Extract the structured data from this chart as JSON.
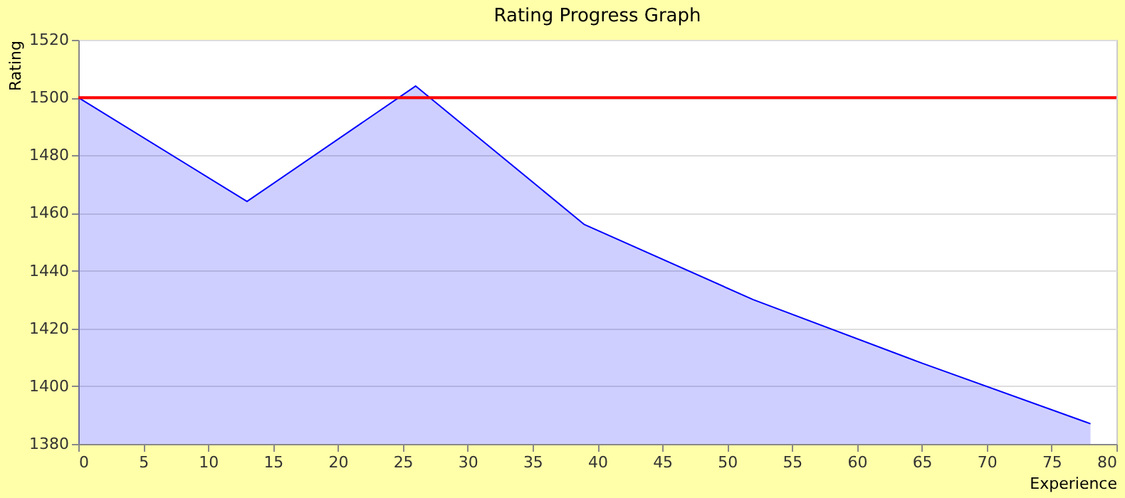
{
  "chart_data": {
    "type": "area",
    "title": "Rating Progress Graph",
    "xlabel": "Experience",
    "ylabel": "Rating",
    "x": [
      0,
      13,
      26,
      39,
      52,
      65,
      78
    ],
    "series": [
      {
        "color": "#0000ff",
        "values": [
          1500,
          1464,
          1504,
          1456,
          1430,
          1408,
          1387
        ]
      }
    ],
    "xlim": [
      0,
      80
    ],
    "xticks": [
      0,
      5,
      10,
      15,
      20,
      25,
      30,
      35,
      40,
      45,
      50,
      55,
      60,
      65,
      70,
      75,
      80
    ],
    "ylim": [
      1380,
      1520
    ],
    "yticks": [
      1380,
      1400,
      1420,
      1440,
      1460,
      1480,
      1500,
      1520
    ],
    "ref_lines": [
      {
        "axis": "y",
        "value": 1500,
        "color": "#ff0000"
      }
    ],
    "grid": "y"
  }
}
